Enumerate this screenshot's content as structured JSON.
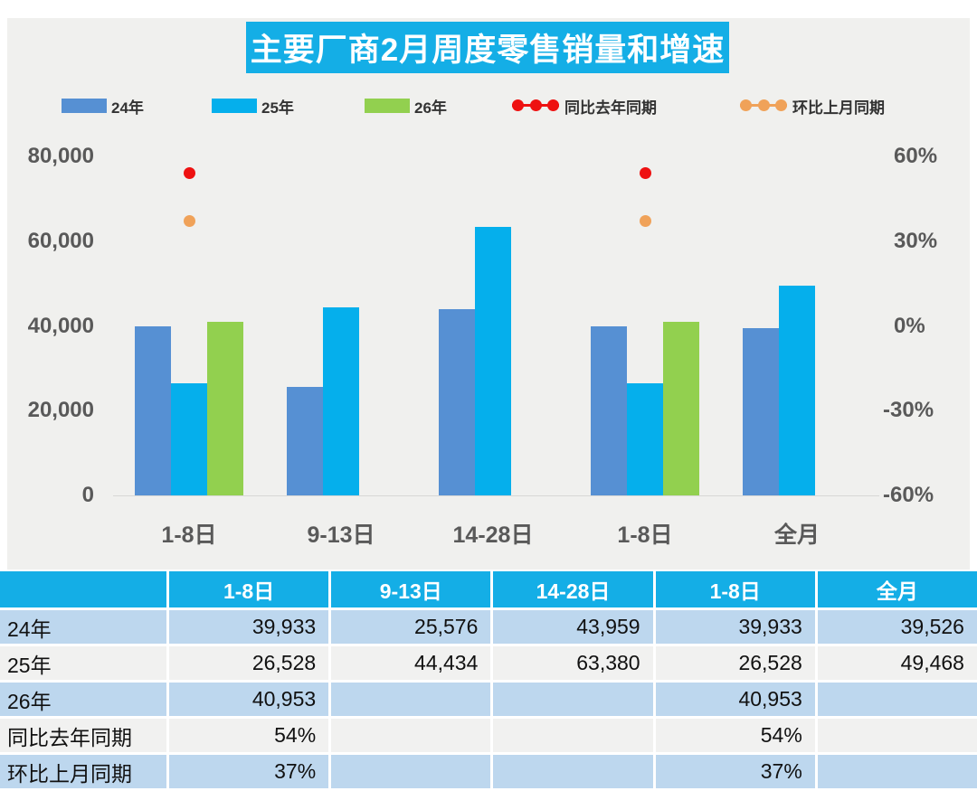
{
  "title": "主要厂商2月周度零售销量和增速",
  "colors": {
    "title_bg": "#14AEE6",
    "chart_bg": "#F0F0EE",
    "bar_24": "#5690D3",
    "bar_25": "#05AFEC",
    "bar_26": "#92D04F",
    "yoy_red": "#EE1111",
    "mom_orange": "#F0A259",
    "axis_text": "#595959",
    "table_header_bg": "#14AEE6",
    "row_blue": "#BDD7EE",
    "row_gray": "#F1F1F0"
  },
  "legend": {
    "items": [
      {
        "label": "24年",
        "type": "swatch",
        "color_key": "bar_24"
      },
      {
        "label": "25年",
        "type": "swatch",
        "color_key": "bar_25"
      },
      {
        "label": "26年",
        "type": "swatch",
        "color_key": "bar_26"
      },
      {
        "label": "同比去年同期",
        "type": "line-dots",
        "color_key": "yoy_red"
      },
      {
        "label": "环比上月同期",
        "type": "line-dots",
        "color_key": "mom_orange"
      }
    ]
  },
  "chart_data": {
    "type": "bar",
    "title": "主要厂商2月周度零售销量和增速",
    "categories": [
      "1-8日",
      "9-13日",
      "14-28日",
      "1-8日",
      "全月"
    ],
    "series": [
      {
        "name": "24年",
        "kind": "bar",
        "color_key": "bar_24",
        "values": [
          39933,
          25576,
          43959,
          39933,
          39526
        ]
      },
      {
        "name": "25年",
        "kind": "bar",
        "color_key": "bar_25",
        "values": [
          26528,
          44434,
          63380,
          26528,
          49468
        ]
      },
      {
        "name": "26年",
        "kind": "bar",
        "color_key": "bar_26",
        "values": [
          40953,
          null,
          null,
          40953,
          null
        ]
      },
      {
        "name": "同比去年同期",
        "kind": "point",
        "color_key": "yoy_red",
        "values_pct": [
          54,
          null,
          null,
          54,
          null
        ]
      },
      {
        "name": "环比上月同期",
        "kind": "point",
        "color_key": "mom_orange",
        "values_pct": [
          37,
          null,
          null,
          37,
          null
        ]
      }
    ],
    "left_axis": {
      "min": 0,
      "max": 80000,
      "ticks": [
        {
          "label": "80,000",
          "value": 80000
        },
        {
          "label": "60,000",
          "value": 60000
        },
        {
          "label": "40,000",
          "value": 40000
        },
        {
          "label": "20,000",
          "value": 20000
        },
        {
          "label": "0",
          "value": 0
        }
      ]
    },
    "right_axis": {
      "min": -60,
      "max": 60,
      "ticks": [
        {
          "label": "60%",
          "value": 60
        },
        {
          "label": "30%",
          "value": 30
        },
        {
          "label": "0%",
          "value": 0
        },
        {
          "label": "-30%",
          "value": -30
        },
        {
          "label": "-60%",
          "value": -60
        }
      ]
    },
    "grid": false,
    "legend_position": "top"
  },
  "table": {
    "header": [
      "",
      "1-8日",
      "9-13日",
      "14-28日",
      "1-8日",
      "全月"
    ],
    "rows": [
      {
        "label": "24年",
        "values": [
          "39,933",
          "25,576",
          "43,959",
          "39,933",
          "39,526"
        ]
      },
      {
        "label": "25年",
        "values": [
          "26,528",
          "44,434",
          "63,380",
          "26,528",
          "49,468"
        ]
      },
      {
        "label": "26年",
        "values": [
          "40,953",
          "",
          "",
          "40,953",
          ""
        ]
      },
      {
        "label": "同比去年同期",
        "values": [
          "54%",
          "",
          "",
          "54%",
          ""
        ]
      },
      {
        "label": "环比上月同期",
        "values": [
          "37%",
          "",
          "",
          "37%",
          ""
        ]
      }
    ]
  }
}
